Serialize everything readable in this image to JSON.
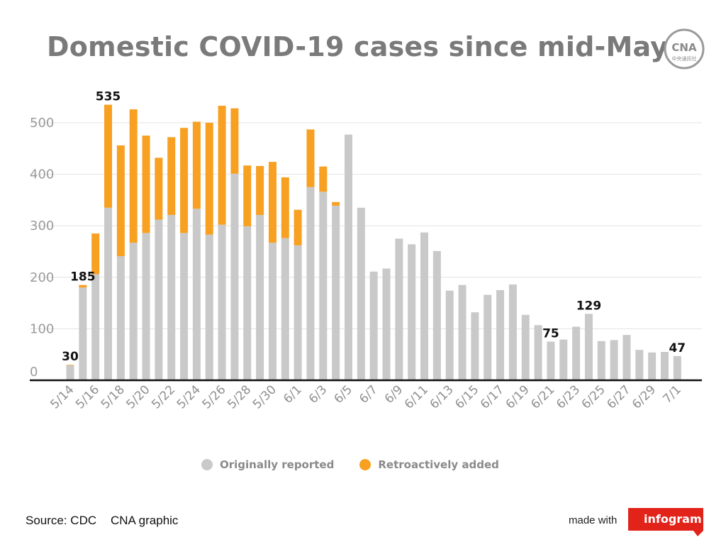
{
  "title": "Domestic COVID-19 cases since mid-May",
  "logo_text": "CNA",
  "logo_subtext": "中央通訊社",
  "colors": {
    "original": "#c9c9c9",
    "retro": "#f7a021",
    "title": "#7a7a7a",
    "accent": "#e2231a"
  },
  "legend": {
    "original": "Originally reported",
    "retro": "Retroactively added"
  },
  "footer": {
    "source": "Source: CDC",
    "credit": "CNA graphic",
    "made_with": "made with",
    "brand": "infogram"
  },
  "chart_data": {
    "type": "bar",
    "stacked": true,
    "title": "Domestic COVID-19 cases since mid-May",
    "xlabel": "",
    "ylabel": "",
    "ylim": [
      0,
      550
    ],
    "yticks": [
      0,
      100,
      200,
      300,
      400,
      500
    ],
    "grid": true,
    "legend_position": "bottom",
    "categories": [
      "5/14",
      "5/15",
      "5/16",
      "5/17",
      "5/18",
      "5/19",
      "5/20",
      "5/21",
      "5/22",
      "5/23",
      "5/24",
      "5/25",
      "5/26",
      "5/27",
      "5/28",
      "5/29",
      "5/30",
      "5/31",
      "6/1",
      "6/2",
      "6/3",
      "6/4",
      "6/5",
      "6/6",
      "6/7",
      "6/8",
      "6/9",
      "6/10",
      "6/11",
      "6/12",
      "6/13",
      "6/14",
      "6/15",
      "6/16",
      "6/17",
      "6/18",
      "6/19",
      "6/20",
      "6/21",
      "6/22",
      "6/23",
      "6/24",
      "6/25",
      "6/26",
      "6/27",
      "6/28",
      "6/29",
      "6/30",
      "7/1"
    ],
    "xtick_labels": [
      "5/14",
      "5/16",
      "5/18",
      "5/20",
      "5/22",
      "5/24",
      "5/26",
      "5/28",
      "5/30",
      "6/1",
      "6/3",
      "6/5",
      "6/7",
      "6/9",
      "6/11",
      "6/13",
      "6/15",
      "6/17",
      "6/19",
      "6/21",
      "6/23",
      "6/25",
      "6/27",
      "6/29",
      "7/1"
    ],
    "series": [
      {
        "name": "Originally reported",
        "values": [
          29,
          180,
          206,
          335,
          241,
          267,
          286,
          312,
          321,
          286,
          333,
          283,
          302,
          401,
          299,
          321,
          267,
          276,
          262,
          375,
          366,
          339,
          477,
          335,
          211,
          217,
          275,
          264,
          287,
          251,
          174,
          185,
          132,
          166,
          175,
          186,
          127,
          107,
          75,
          79,
          104,
          129,
          76,
          78,
          88,
          59,
          54,
          55,
          47
        ]
      },
      {
        "name": "Retroactively added",
        "values": [
          1,
          5,
          79,
          200,
          215,
          259,
          189,
          120,
          151,
          204,
          169,
          217,
          231,
          127,
          118,
          95,
          157,
          118,
          69,
          112,
          49,
          7,
          0,
          0,
          0,
          0,
          0,
          0,
          0,
          0,
          0,
          0,
          0,
          0,
          0,
          0,
          0,
          0,
          0,
          0,
          0,
          0,
          0,
          0,
          0,
          0,
          0,
          0,
          0
        ]
      }
    ],
    "data_labels": [
      {
        "category": "5/14",
        "text": "30"
      },
      {
        "category": "5/15",
        "text": "185"
      },
      {
        "category": "5/17",
        "text": "535"
      },
      {
        "category": "6/21",
        "text": "75"
      },
      {
        "category": "6/24",
        "text": "129"
      },
      {
        "category": "7/1",
        "text": "47"
      }
    ]
  }
}
